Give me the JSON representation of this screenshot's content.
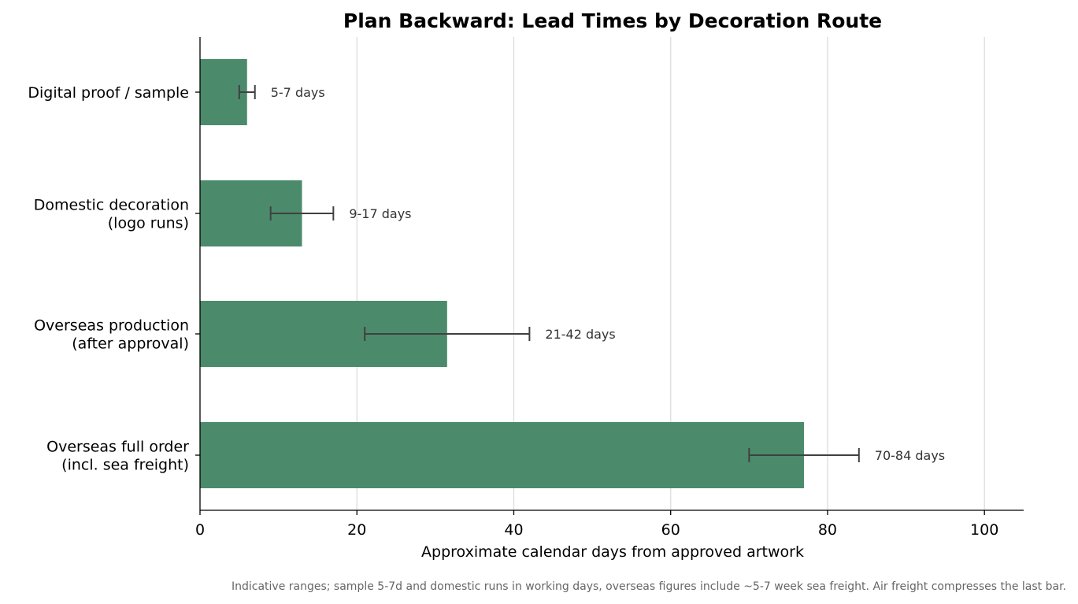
{
  "chart_data": {
    "type": "bar",
    "orientation": "horizontal",
    "title": "Plan Backward: Lead Times by Decoration Route",
    "xlabel": "Approximate calendar days from approved artwork",
    "ylabel": "",
    "xlim": [
      0,
      105
    ],
    "xticks": [
      0,
      20,
      40,
      60,
      80,
      100
    ],
    "grid": "vertical",
    "categories": [
      [
        "Digital proof / sample"
      ],
      [
        "Domestic decoration",
        "(logo runs)"
      ],
      [
        "Overseas production",
        "(after approval)"
      ],
      [
        "Overseas full order",
        "(incl. sea freight)"
      ]
    ],
    "values": [
      6,
      13,
      31.5,
      77
    ],
    "ranges": [
      [
        5,
        7
      ],
      [
        9,
        17
      ],
      [
        21,
        42
      ],
      [
        70,
        84
      ]
    ],
    "data_labels": [
      "5-7 days",
      "9-17 days",
      "21-42 days",
      "70-84 days"
    ],
    "colors": {
      "bar": "#4b8b6b",
      "error_bar": "#404040",
      "grid": "#dddddd",
      "axis": "#000000"
    },
    "footnote": "Indicative ranges; sample 5-7d and domestic runs in working days, overseas figures include ~5-7 week sea freight. Air freight compresses the last bar."
  }
}
